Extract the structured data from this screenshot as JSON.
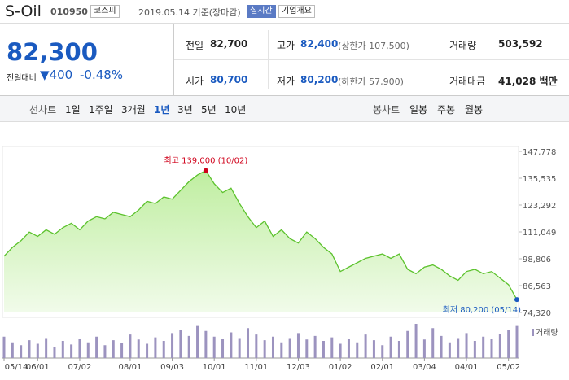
{
  "header": {
    "name": "S-Oil",
    "code": "010950",
    "market": "코스피",
    "date": "2019.05.14 기준(장마감)",
    "realtime": "실시간",
    "company": "기업개요"
  },
  "summary": {
    "price": "82,300",
    "change_label": "전일대비",
    "change": "400",
    "change_pct": "-0.48%",
    "rows": [
      [
        [
          "전일",
          "82,700",
          ""
        ],
        [
          "고가",
          "82,400",
          "(상한가 107,500)"
        ],
        [
          "거래량",
          "503,592",
          ""
        ]
      ],
      [
        [
          "시가",
          "80,700",
          ""
        ],
        [
          "저가",
          "80,200",
          "(하한가 57,900)"
        ],
        [
          "거래대금",
          "41,028 백만",
          ""
        ]
      ]
    ]
  },
  "tabs": {
    "line_label": "선차트",
    "line_tabs": [
      "1일",
      "1주일",
      "3개월",
      "1년",
      "3년",
      "5년",
      "10년"
    ],
    "candle_label": "봉차트",
    "candle_tabs": [
      "일봉",
      "주봉",
      "월봉"
    ]
  },
  "chart_data": {
    "type": "area",
    "color": "#5cc22d",
    "values": [
      100000,
      104000,
      107000,
      111000,
      109000,
      112000,
      110000,
      113000,
      115000,
      112000,
      116000,
      118000,
      117000,
      120000,
      119000,
      118000,
      121000,
      125000,
      124000,
      127000,
      126000,
      130000,
      134000,
      137000,
      139000,
      133000,
      129000,
      131000,
      124000,
      118000,
      113000,
      116000,
      109000,
      112000,
      108000,
      106000,
      111000,
      108000,
      104000,
      101000,
      93000,
      95000,
      97000,
      99000,
      100000,
      101000,
      99000,
      101000,
      94000,
      92000,
      95000,
      96000,
      94000,
      91000,
      89000,
      93000,
      94000,
      92000,
      93000,
      90000,
      87000,
      80200
    ],
    "xlim": [
      0,
      61
    ],
    "xticks": [
      {
        "value": 0,
        "label": "05/14"
      },
      {
        "value": 4,
        "label": "06/01"
      },
      {
        "value": 9,
        "label": "07/02"
      },
      {
        "value": 15,
        "label": "08/01"
      },
      {
        "value": 20,
        "label": "09/03"
      },
      {
        "value": 25,
        "label": "10/01"
      },
      {
        "value": 30,
        "label": "11/01"
      },
      {
        "value": 35,
        "label": "12/03"
      },
      {
        "value": 40,
        "label": "01/02"
      },
      {
        "value": 45,
        "label": "02/01"
      },
      {
        "value": 50,
        "label": "03/04"
      },
      {
        "value": 55,
        "label": "04/01"
      },
      {
        "value": 60,
        "label": "05/02"
      }
    ],
    "ylim": [
      74320,
      147778
    ],
    "yticks": [
      {
        "value": 147778,
        "label": "147,778"
      },
      {
        "value": 135535,
        "label": "135,535"
      },
      {
        "value": 123292,
        "label": "123,292"
      },
      {
        "value": 111049,
        "label": "111,049"
      },
      {
        "value": 98806,
        "label": "98,806"
      },
      {
        "value": 86563,
        "label": "86,563"
      },
      {
        "value": 74320,
        "label": "74,320"
      }
    ],
    "annotations": [
      {
        "text": "최고 139,000 (10/02)",
        "index": 24
      },
      {
        "text": "최저 80,200 (05/14)",
        "index": 61
      }
    ],
    "volume": {
      "name": "거래량",
      "color": "#9c93bf",
      "values": [
        30,
        22,
        18,
        25,
        20,
        28,
        16,
        24,
        19,
        27,
        22,
        30,
        18,
        25,
        21,
        33,
        26,
        20,
        29,
        24,
        35,
        40,
        31,
        45,
        38,
        30,
        27,
        36,
        28,
        42,
        33,
        25,
        30,
        22,
        28,
        35,
        26,
        31,
        24,
        29,
        20,
        27,
        22,
        33,
        25,
        18,
        30,
        24,
        38,
        48,
        26,
        42,
        31,
        22,
        28,
        35,
        24,
        30,
        27,
        34,
        40,
        45
      ]
    }
  }
}
